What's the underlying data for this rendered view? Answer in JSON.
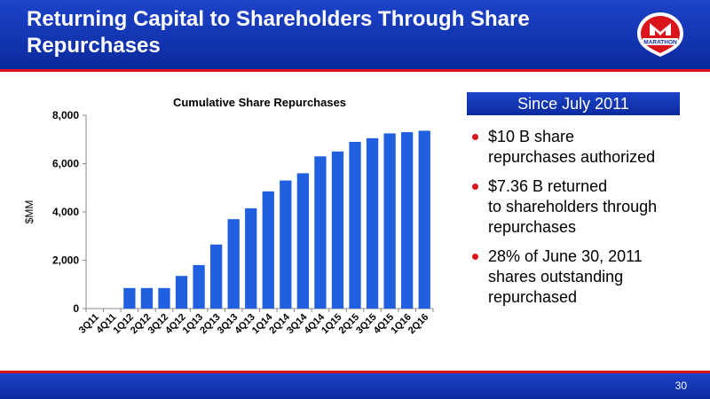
{
  "header": {
    "title": "Returning Capital to Shareholders Through Share Repurchases",
    "logo_text": "MARATHON"
  },
  "footer": {
    "page_number": "30"
  },
  "colors": {
    "brand_blue": "#0a2a9e",
    "brand_red": "#d9141b",
    "bar": "#1f5fe0"
  },
  "sidebar": {
    "heading": "Since July 2011",
    "bullets": [
      "$10 B share\nrepurchases authorized",
      "$7.36 B returned\nto shareholders through\nrepurchases",
      "28% of June 30, 2011\nshares outstanding\nrepurchased"
    ]
  },
  "chart_data": {
    "type": "bar",
    "title": "Cumulative Share Repurchases",
    "xlabel": "",
    "ylabel": "$MM",
    "ylim": [
      0,
      8000
    ],
    "yticks": [
      0,
      2000,
      4000,
      6000,
      8000
    ],
    "ytick_labels": [
      "0",
      "2,000",
      "4,000",
      "6,000",
      "8,000"
    ],
    "grid": false,
    "categories": [
      "3Q11",
      "4Q11",
      "1Q12",
      "2Q12",
      "3Q12",
      "4Q12",
      "1Q13",
      "2Q13",
      "3Q13",
      "4Q13",
      "1Q14",
      "2Q14",
      "3Q14",
      "4Q14",
      "1Q15",
      "2Q15",
      "3Q15",
      "4Q15",
      "1Q16",
      "2Q16"
    ],
    "values": [
      0,
      0,
      850,
      850,
      850,
      1350,
      1800,
      2650,
      3700,
      4150,
      4850,
      5300,
      5600,
      6300,
      6500,
      6900,
      7050,
      7250,
      7300,
      7360
    ]
  }
}
